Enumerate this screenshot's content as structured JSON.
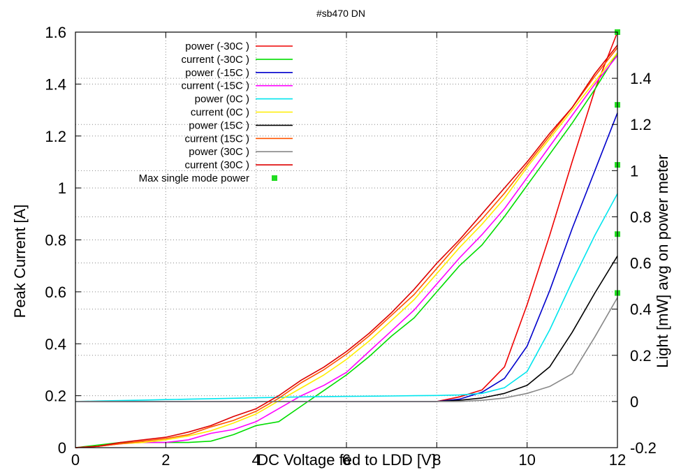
{
  "chart_data": {
    "type": "line",
    "title": "#sb470 DN",
    "xlabel": "DC Voltage fed to LDD [V]",
    "ylabel": "Peak Current [A]",
    "y2label": "Light [mW] avg on power meter",
    "xlim": [
      0,
      12
    ],
    "ylim": [
      0,
      1.6
    ],
    "y2lim": [
      -0.2,
      1.6
    ],
    "x_ticks": [
      "0",
      "2",
      "4",
      "6",
      "8",
      "10",
      "12"
    ],
    "y_ticks": [
      "0",
      "0.2",
      "0.4",
      "0.6",
      "0.8",
      "1",
      "1.2",
      "1.4",
      "1.6"
    ],
    "y2_ticks": [
      "-0.2",
      "0",
      "0.2",
      "0.4",
      "0.6",
      "0.8",
      "1",
      "1.2",
      "1.4"
    ],
    "grid": "dotted, inner",
    "legend_position": "top-left",
    "x": [
      0,
      0.5,
      1,
      1.5,
      2,
      2.5,
      3,
      3.5,
      4,
      4.5,
      5,
      5.5,
      6,
      6.5,
      7,
      7.5,
      8,
      8.5,
      9,
      9.5,
      10,
      10.5,
      11,
      11.5,
      12
    ],
    "series": [
      {
        "name": "power (-30C )",
        "axis": "y2",
        "color": "#ee0000",
        "values": [
          0,
          0,
          0,
          0,
          0,
          0,
          0,
          0,
          0,
          0,
          0,
          0,
          0,
          0,
          0,
          0,
          0,
          0.02,
          0.05,
          0.15,
          0.42,
          0.72,
          1.04,
          1.35,
          1.6
        ]
      },
      {
        "name": "current (-30C )",
        "axis": "y",
        "color": "#00dd00",
        "values": [
          0,
          0.01,
          0.02,
          0.02,
          0.02,
          0.02,
          0.025,
          0.05,
          0.085,
          0.1,
          0.16,
          0.22,
          0.28,
          0.35,
          0.43,
          0.5,
          0.6,
          0.7,
          0.78,
          0.89,
          1.01,
          1.13,
          1.25,
          1.38,
          1.52
        ]
      },
      {
        "name": "power (-15C )",
        "axis": "y2",
        "color": "#0000cc",
        "values": [
          0,
          0,
          0,
          0,
          0,
          0,
          0,
          0,
          0,
          0,
          0,
          0,
          0,
          0,
          0,
          0,
          0,
          0.01,
          0.04,
          0.1,
          0.24,
          0.48,
          0.75,
          1.0,
          1.25
        ]
      },
      {
        "name": "current (-15C )",
        "axis": "y",
        "color": "#ff00ff",
        "values": [
          0,
          0.005,
          0.015,
          0.02,
          0.02,
          0.03,
          0.055,
          0.07,
          0.1,
          0.15,
          0.2,
          0.24,
          0.29,
          0.37,
          0.45,
          0.53,
          0.63,
          0.73,
          0.82,
          0.92,
          1.04,
          1.16,
          1.28,
          1.4,
          1.51
        ]
      },
      {
        "name": "power (0C )",
        "axis": "y2",
        "color": "#00e5ee",
        "values": [
          0,
          0.002,
          0.004,
          0.006,
          0.008,
          0.01,
          0.012,
          0.014,
          0.016,
          0.018,
          0.02,
          0.021,
          0.022,
          0.023,
          0.024,
          0.025,
          0.026,
          0.028,
          0.035,
          0.06,
          0.13,
          0.31,
          0.52,
          0.72,
          0.9
        ]
      },
      {
        "name": "current (0C )",
        "axis": "y",
        "color": "#ffee00",
        "values": [
          0,
          0.005,
          0.015,
          0.02,
          0.03,
          0.045,
          0.065,
          0.095,
          0.13,
          0.18,
          0.23,
          0.28,
          0.34,
          0.41,
          0.49,
          0.57,
          0.67,
          0.77,
          0.86,
          0.96,
          1.08,
          1.19,
          1.3,
          1.41,
          1.52
        ]
      },
      {
        "name": "power (15C )",
        "axis": "y2",
        "color": "#000000",
        "values": [
          0,
          0,
          0,
          0,
          0,
          0,
          0,
          0,
          0,
          0,
          0,
          0,
          0,
          0,
          0,
          0,
          0,
          0.005,
          0.015,
          0.035,
          0.07,
          0.15,
          0.3,
          0.47,
          0.63
        ]
      },
      {
        "name": "current (15C )",
        "axis": "y",
        "color": "#ff5500",
        "values": [
          0,
          0.005,
          0.015,
          0.025,
          0.035,
          0.05,
          0.08,
          0.105,
          0.14,
          0.19,
          0.25,
          0.3,
          0.36,
          0.43,
          0.51,
          0.59,
          0.69,
          0.79,
          0.88,
          0.98,
          1.09,
          1.2,
          1.31,
          1.43,
          1.54
        ]
      },
      {
        "name": "power (30C )",
        "axis": "y2",
        "color": "#888888",
        "values": [
          0,
          0,
          0,
          0,
          0,
          0,
          0,
          0,
          0,
          0,
          0,
          0,
          0,
          0,
          0,
          0,
          0,
          0,
          0.005,
          0.015,
          0.035,
          0.065,
          0.12,
          0.28,
          0.45
        ]
      },
      {
        "name": "current (30C )",
        "axis": "y",
        "color": "#dd0000",
        "values": [
          0,
          0.005,
          0.02,
          0.03,
          0.04,
          0.06,
          0.085,
          0.12,
          0.15,
          0.2,
          0.26,
          0.31,
          0.37,
          0.44,
          0.52,
          0.61,
          0.71,
          0.8,
          0.9,
          1.0,
          1.1,
          1.21,
          1.31,
          1.44,
          1.55
        ]
      }
    ],
    "markers": {
      "name": "Max single mode power",
      "axis": "y2",
      "color": "#22dd22",
      "points": [
        [
          12,
          1.6
        ],
        [
          12,
          1.285
        ],
        [
          12,
          1.025
        ],
        [
          12,
          0.725
        ],
        [
          12,
          0.47
        ]
      ]
    }
  }
}
